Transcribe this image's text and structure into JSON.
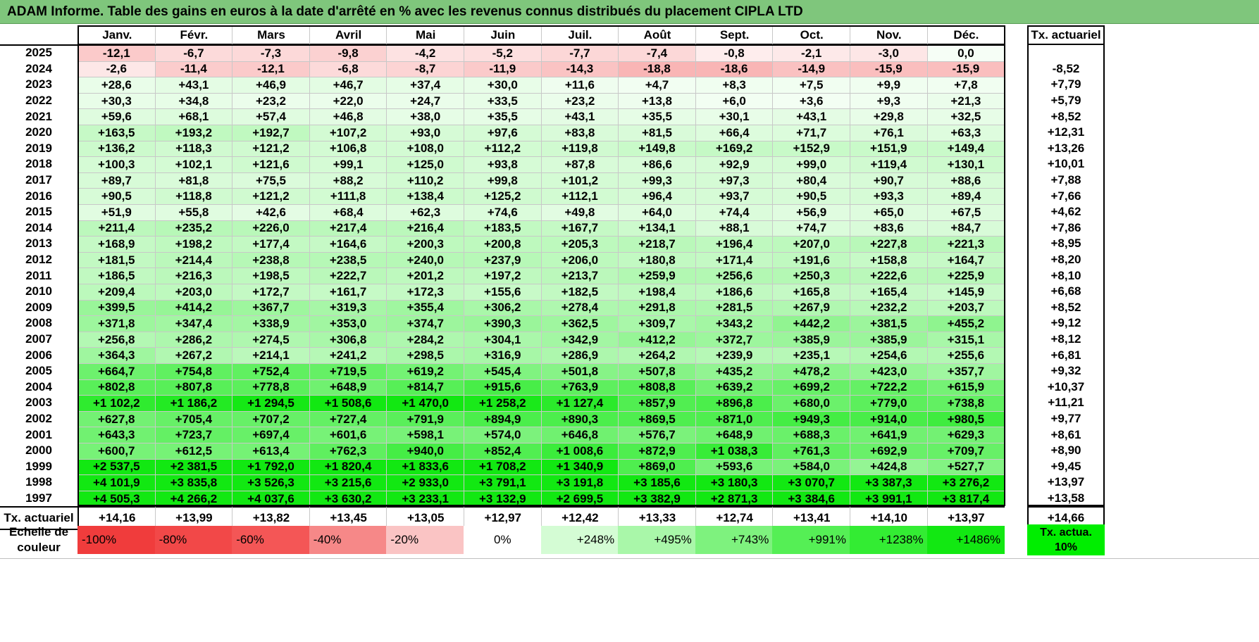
{
  "title": "ADAM Informe. Table des gains en euros à la date d'arrêté en % avec les revenus connus distribués du placement CIPLA LTD",
  "months": [
    "Janv.",
    "Févr.",
    "Mars",
    "Avril",
    "Mai",
    "Juin",
    "Juil.",
    "Août",
    "Sept.",
    "Oct.",
    "Nov.",
    "Déc."
  ],
  "rate_header": "Tx. actuariel",
  "rows": [
    {
      "year": "2025",
      "values": [
        "-12,1",
        "-6,7",
        "-7,3",
        "-9,8",
        "-4,2",
        "-5,2",
        "-7,7",
        "-7,4",
        "-0,8",
        "-2,1",
        "-3,0",
        "0,0"
      ],
      "rate": ""
    },
    {
      "year": "2024",
      "values": [
        "-2,6",
        "-11,4",
        "-12,1",
        "-6,8",
        "-8,7",
        "-11,9",
        "-14,3",
        "-18,8",
        "-18,6",
        "-14,9",
        "-15,9",
        "-15,9"
      ],
      "rate": "-8,52"
    },
    {
      "year": "2023",
      "values": [
        "+28,6",
        "+43,1",
        "+46,9",
        "+46,7",
        "+37,4",
        "+30,0",
        "+11,6",
        "+4,7",
        "+8,3",
        "+7,5",
        "+9,9",
        "+7,8"
      ],
      "rate": "+7,79"
    },
    {
      "year": "2022",
      "values": [
        "+30,3",
        "+34,8",
        "+23,2",
        "+22,0",
        "+24,7",
        "+33,5",
        "+23,2",
        "+13,8",
        "+6,0",
        "+3,6",
        "+9,3",
        "+21,3"
      ],
      "rate": "+5,79"
    },
    {
      "year": "2021",
      "values": [
        "+59,6",
        "+68,1",
        "+57,4",
        "+46,8",
        "+38,0",
        "+35,5",
        "+43,1",
        "+35,5",
        "+30,1",
        "+43,1",
        "+29,8",
        "+32,5"
      ],
      "rate": "+8,52"
    },
    {
      "year": "2020",
      "values": [
        "+163,5",
        "+193,2",
        "+192,7",
        "+107,2",
        "+93,0",
        "+97,6",
        "+83,8",
        "+81,5",
        "+66,4",
        "+71,7",
        "+76,1",
        "+63,3"
      ],
      "rate": "+12,31"
    },
    {
      "year": "2019",
      "values": [
        "+136,2",
        "+118,3",
        "+121,2",
        "+106,8",
        "+108,0",
        "+112,2",
        "+119,8",
        "+149,8",
        "+169,2",
        "+152,9",
        "+151,9",
        "+149,4"
      ],
      "rate": "+13,26"
    },
    {
      "year": "2018",
      "values": [
        "+100,3",
        "+102,1",
        "+121,6",
        "+99,1",
        "+125,0",
        "+93,8",
        "+87,8",
        "+86,6",
        "+92,9",
        "+99,0",
        "+119,4",
        "+130,1"
      ],
      "rate": "+10,01"
    },
    {
      "year": "2017",
      "values": [
        "+89,7",
        "+81,8",
        "+75,5",
        "+88,2",
        "+110,2",
        "+99,8",
        "+101,2",
        "+99,3",
        "+97,3",
        "+80,4",
        "+90,7",
        "+88,6"
      ],
      "rate": "+7,88"
    },
    {
      "year": "2016",
      "values": [
        "+90,5",
        "+118,8",
        "+121,2",
        "+111,8",
        "+138,4",
        "+125,2",
        "+112,1",
        "+96,4",
        "+93,7",
        "+90,5",
        "+93,3",
        "+89,4"
      ],
      "rate": "+7,66"
    },
    {
      "year": "2015",
      "values": [
        "+51,9",
        "+55,8",
        "+42,6",
        "+68,4",
        "+62,3",
        "+74,6",
        "+49,8",
        "+64,0",
        "+74,4",
        "+56,9",
        "+65,0",
        "+67,5"
      ],
      "rate": "+4,62"
    },
    {
      "year": "2014",
      "values": [
        "+211,4",
        "+235,2",
        "+226,0",
        "+217,4",
        "+216,4",
        "+183,5",
        "+167,7",
        "+134,1",
        "+88,1",
        "+74,7",
        "+83,6",
        "+84,7"
      ],
      "rate": "+7,86"
    },
    {
      "year": "2013",
      "values": [
        "+168,9",
        "+198,2",
        "+177,4",
        "+164,6",
        "+200,3",
        "+200,8",
        "+205,3",
        "+218,7",
        "+196,4",
        "+207,0",
        "+227,8",
        "+221,3"
      ],
      "rate": "+8,95"
    },
    {
      "year": "2012",
      "values": [
        "+181,5",
        "+214,4",
        "+238,8",
        "+238,5",
        "+240,0",
        "+237,9",
        "+206,0",
        "+180,8",
        "+171,4",
        "+191,6",
        "+158,8",
        "+164,7"
      ],
      "rate": "+8,20"
    },
    {
      "year": "2011",
      "values": [
        "+186,5",
        "+216,3",
        "+198,5",
        "+222,7",
        "+201,2",
        "+197,2",
        "+213,7",
        "+259,9",
        "+256,6",
        "+250,3",
        "+222,6",
        "+225,9"
      ],
      "rate": "+8,10"
    },
    {
      "year": "2010",
      "values": [
        "+209,4",
        "+203,0",
        "+172,7",
        "+161,7",
        "+172,3",
        "+155,6",
        "+182,5",
        "+198,4",
        "+186,6",
        "+165,8",
        "+165,4",
        "+145,9"
      ],
      "rate": "+6,68"
    },
    {
      "year": "2009",
      "values": [
        "+399,5",
        "+414,2",
        "+367,7",
        "+319,3",
        "+355,4",
        "+306,2",
        "+278,4",
        "+291,8",
        "+281,5",
        "+267,9",
        "+232,2",
        "+203,7"
      ],
      "rate": "+8,52"
    },
    {
      "year": "2008",
      "values": [
        "+371,8",
        "+347,4",
        "+338,9",
        "+353,0",
        "+374,7",
        "+390,3",
        "+362,5",
        "+309,7",
        "+343,2",
        "+442,2",
        "+381,5",
        "+455,2"
      ],
      "rate": "+9,12"
    },
    {
      "year": "2007",
      "values": [
        "+256,8",
        "+286,2",
        "+274,5",
        "+306,8",
        "+284,2",
        "+304,1",
        "+342,9",
        "+412,2",
        "+372,7",
        "+385,9",
        "+385,9",
        "+315,1"
      ],
      "rate": "+8,12"
    },
    {
      "year": "2006",
      "values": [
        "+364,3",
        "+267,2",
        "+214,1",
        "+241,2",
        "+298,5",
        "+316,9",
        "+286,9",
        "+264,2",
        "+239,9",
        "+235,1",
        "+254,6",
        "+255,6"
      ],
      "rate": "+6,81"
    },
    {
      "year": "2005",
      "values": [
        "+664,7",
        "+754,8",
        "+752,4",
        "+719,5",
        "+619,2",
        "+545,4",
        "+501,8",
        "+507,8",
        "+435,2",
        "+478,2",
        "+423,0",
        "+357,7"
      ],
      "rate": "+9,32"
    },
    {
      "year": "2004",
      "values": [
        "+802,8",
        "+807,8",
        "+778,8",
        "+648,9",
        "+814,7",
        "+915,6",
        "+763,9",
        "+808,8",
        "+639,2",
        "+699,2",
        "+722,2",
        "+615,9"
      ],
      "rate": "+10,37"
    },
    {
      "year": "2003",
      "values": [
        "+1 102,2",
        "+1 186,2",
        "+1 294,5",
        "+1 508,6",
        "+1 470,0",
        "+1 258,2",
        "+1 127,4",
        "+857,9",
        "+896,8",
        "+680,0",
        "+779,0",
        "+738,8"
      ],
      "rate": "+11,21"
    },
    {
      "year": "2002",
      "values": [
        "+627,8",
        "+705,4",
        "+707,2",
        "+727,4",
        "+791,9",
        "+894,9",
        "+890,3",
        "+869,5",
        "+871,0",
        "+949,3",
        "+914,0",
        "+980,5"
      ],
      "rate": "+9,77"
    },
    {
      "year": "2001",
      "values": [
        "+643,3",
        "+723,7",
        "+697,4",
        "+601,6",
        "+598,1",
        "+574,0",
        "+646,8",
        "+576,7",
        "+648,9",
        "+688,3",
        "+641,9",
        "+629,3"
      ],
      "rate": "+8,61"
    },
    {
      "year": "2000",
      "values": [
        "+600,7",
        "+612,5",
        "+613,4",
        "+762,3",
        "+940,0",
        "+852,4",
        "+1 008,6",
        "+872,9",
        "+1 038,3",
        "+761,3",
        "+692,9",
        "+709,7"
      ],
      "rate": "+8,90"
    },
    {
      "year": "1999",
      "values": [
        "+2 537,5",
        "+2 381,5",
        "+1 792,0",
        "+1 820,4",
        "+1 833,6",
        "+1 708,2",
        "+1 340,9",
        "+869,0",
        "+593,6",
        "+584,0",
        "+424,8",
        "+527,7"
      ],
      "rate": "+9,45"
    },
    {
      "year": "1998",
      "values": [
        "+4 101,9",
        "+3 835,8",
        "+3 526,3",
        "+3 215,6",
        "+2 933,0",
        "+3 791,1",
        "+3 191,8",
        "+3 185,6",
        "+3 180,3",
        "+3 070,7",
        "+3 387,3",
        "+3 276,2"
      ],
      "rate": "+13,97"
    },
    {
      "year": "1997",
      "values": [
        "+4 505,3",
        "+4 266,2",
        "+4 037,6",
        "+3 630,2",
        "+3 233,1",
        "+3 132,9",
        "+2 699,5",
        "+3 382,9",
        "+2 871,3",
        "+3 384,6",
        "+3 991,1",
        "+3 817,4"
      ],
      "rate": "+13,58"
    }
  ],
  "footer": {
    "label": "Tx. actuariel",
    "values": [
      "+14,16",
      "+13,99",
      "+13,82",
      "+13,45",
      "+13,05",
      "+12,97",
      "+12,42",
      "+13,33",
      "+12,74",
      "+13,41",
      "+14,10",
      "+13,97"
    ],
    "total": "+14,66"
  },
  "scale": {
    "label": "Echelle de couleur",
    "items": [
      {
        "label": "-100%",
        "color": "#f03c3c"
      },
      {
        "label": "-80%",
        "color": "#f24848"
      },
      {
        "label": "-60%",
        "color": "#f45656"
      },
      {
        "label": "-40%",
        "color": "#f68888"
      },
      {
        "label": "-20%",
        "color": "#fac4c4"
      },
      {
        "label": "0%",
        "color": "#ffffff"
      },
      {
        "label": "+248%",
        "color": "#d4fcd4"
      },
      {
        "label": "+495%",
        "color": "#a9f7a9"
      },
      {
        "label": "+743%",
        "color": "#7ef27e"
      },
      {
        "label": "+991%",
        "color": "#55ef55"
      },
      {
        "label": "+1238%",
        "color": "#33ec33"
      },
      {
        "label": "+1486%",
        "color": "#12e812"
      }
    ],
    "legend": "Tx. actua. 10%",
    "legend_color": "#00ee00"
  }
}
